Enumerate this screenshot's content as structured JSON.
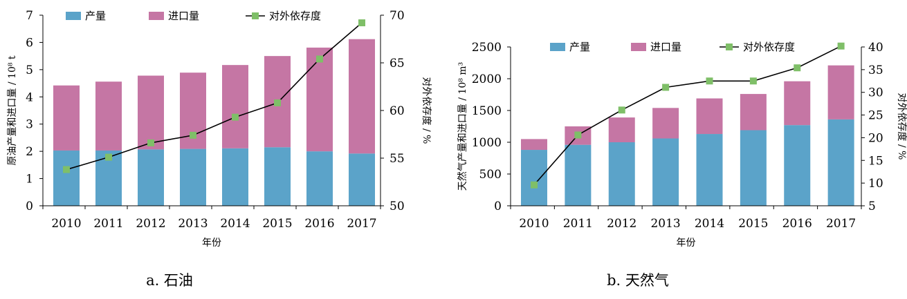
{
  "chart_data": [
    {
      "type": "bar+line",
      "caption": "a. 石油",
      "xlabel": "年份",
      "ylabel": "原油产量和进口量 / 10⁸ t",
      "y2label": "对外依存度 / %",
      "categories": [
        "2010",
        "2011",
        "2012",
        "2013",
        "2014",
        "2015",
        "2016",
        "2017"
      ],
      "ylim": [
        0,
        7
      ],
      "yticks": [
        "0",
        "1",
        "2",
        "3",
        "4",
        "5",
        "6",
        "7"
      ],
      "y2lim": [
        50,
        70
      ],
      "y2ticks": [
        "50",
        "55",
        "60",
        "65",
        "70"
      ],
      "legend": {
        "production": "产量",
        "imports": "进口量",
        "dependence": "对外依存度"
      },
      "series": [
        {
          "name": "产量",
          "kind": "bar-stack",
          "color": "#5ba3c9",
          "values": [
            2.03,
            2.03,
            2.07,
            2.09,
            2.11,
            2.15,
            2.0,
            1.92
          ]
        },
        {
          "name": "进口量",
          "kind": "bar-stack",
          "color": "#c576a4",
          "values": [
            2.39,
            2.53,
            2.71,
            2.8,
            3.06,
            3.35,
            3.81,
            4.2
          ]
        },
        {
          "name": "对外依存度",
          "kind": "line",
          "axis": "right",
          "color": "#000000",
          "marker_color": "#7fbf68",
          "values": [
            53.8,
            55.1,
            56.6,
            57.4,
            59.3,
            60.8,
            65.4,
            69.2
          ]
        }
      ]
    },
    {
      "type": "bar+line",
      "caption": "b. 天然气",
      "xlabel": "年份",
      "ylabel": "天然气产量和进口量 / 10⁸ m³",
      "y2label": "对外依存度 / %",
      "categories": [
        "2010",
        "2011",
        "2012",
        "2013",
        "2014",
        "2015",
        "2016",
        "2017"
      ],
      "ylim": [
        0,
        2500
      ],
      "yticks": [
        "0",
        "500",
        "1000",
        "1500",
        "2000",
        "2500"
      ],
      "y2lim": [
        5,
        40
      ],
      "y2ticks": [
        "5",
        "10",
        "15",
        "20",
        "25",
        "30",
        "35",
        "40"
      ],
      "legend": {
        "production": "产量",
        "imports": "进口量",
        "dependence": "对外依存度"
      },
      "series": [
        {
          "name": "产量",
          "kind": "bar-stack",
          "color": "#5ba3c9",
          "values": [
            880,
            960,
            1000,
            1060,
            1130,
            1190,
            1270,
            1360
          ]
        },
        {
          "name": "进口量",
          "kind": "bar-stack",
          "color": "#c576a4",
          "values": [
            170,
            290,
            390,
            480,
            560,
            570,
            690,
            850
          ]
        },
        {
          "name": "对外依存度",
          "kind": "line",
          "axis": "right",
          "color": "#000000",
          "marker_color": "#7fbf68",
          "values": [
            9.6,
            20.6,
            26.1,
            31.1,
            32.5,
            32.5,
            35.4,
            40.2
          ]
        }
      ]
    }
  ]
}
